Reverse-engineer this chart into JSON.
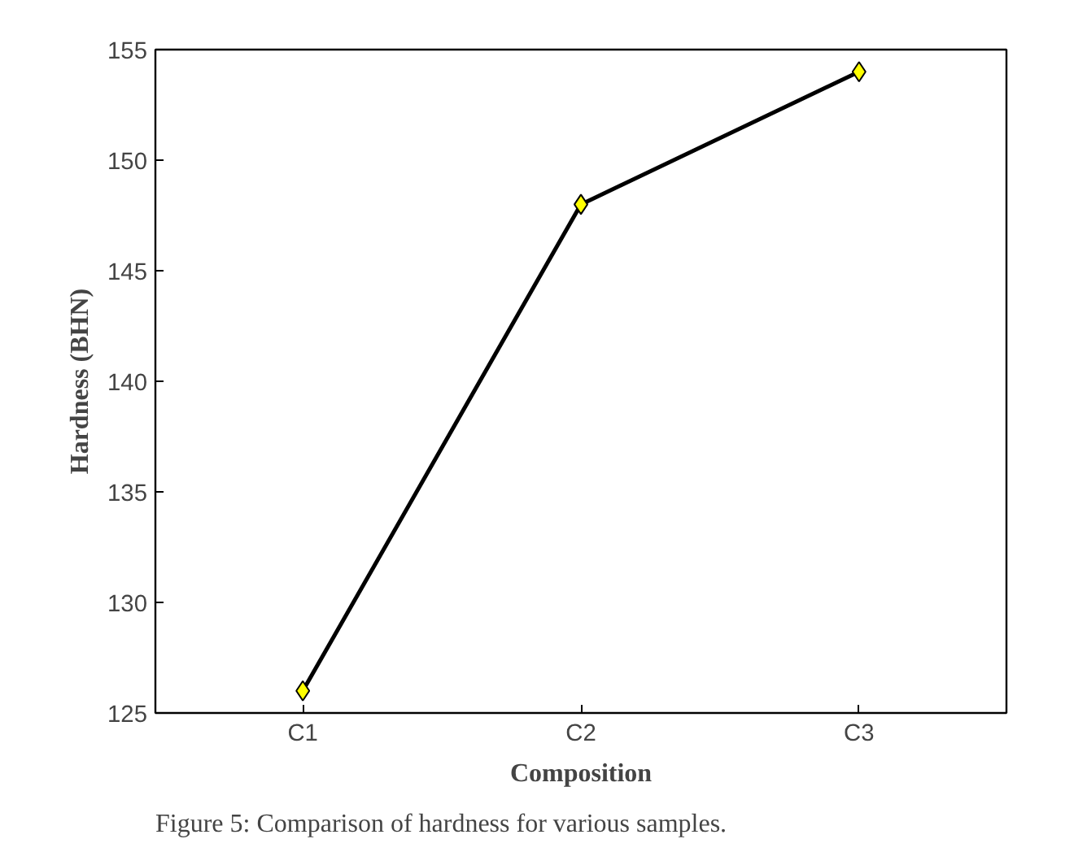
{
  "chart_data": {
    "type": "line",
    "xlabel": "Composition",
    "ylabel": "Hardness (BHN)",
    "categories": [
      "C1",
      "C2",
      "C3"
    ],
    "series": [
      {
        "color": "#ffff00",
        "values": [
          126,
          148,
          154
        ]
      }
    ],
    "ylim": [
      125,
      155
    ],
    "yticks": [
      125,
      130,
      135,
      140,
      145,
      150,
      155
    ],
    "marker": "diamond",
    "line_style": "solid",
    "annotations": [
      "Figure 5: Comparison of hardness for various samples."
    ]
  }
}
